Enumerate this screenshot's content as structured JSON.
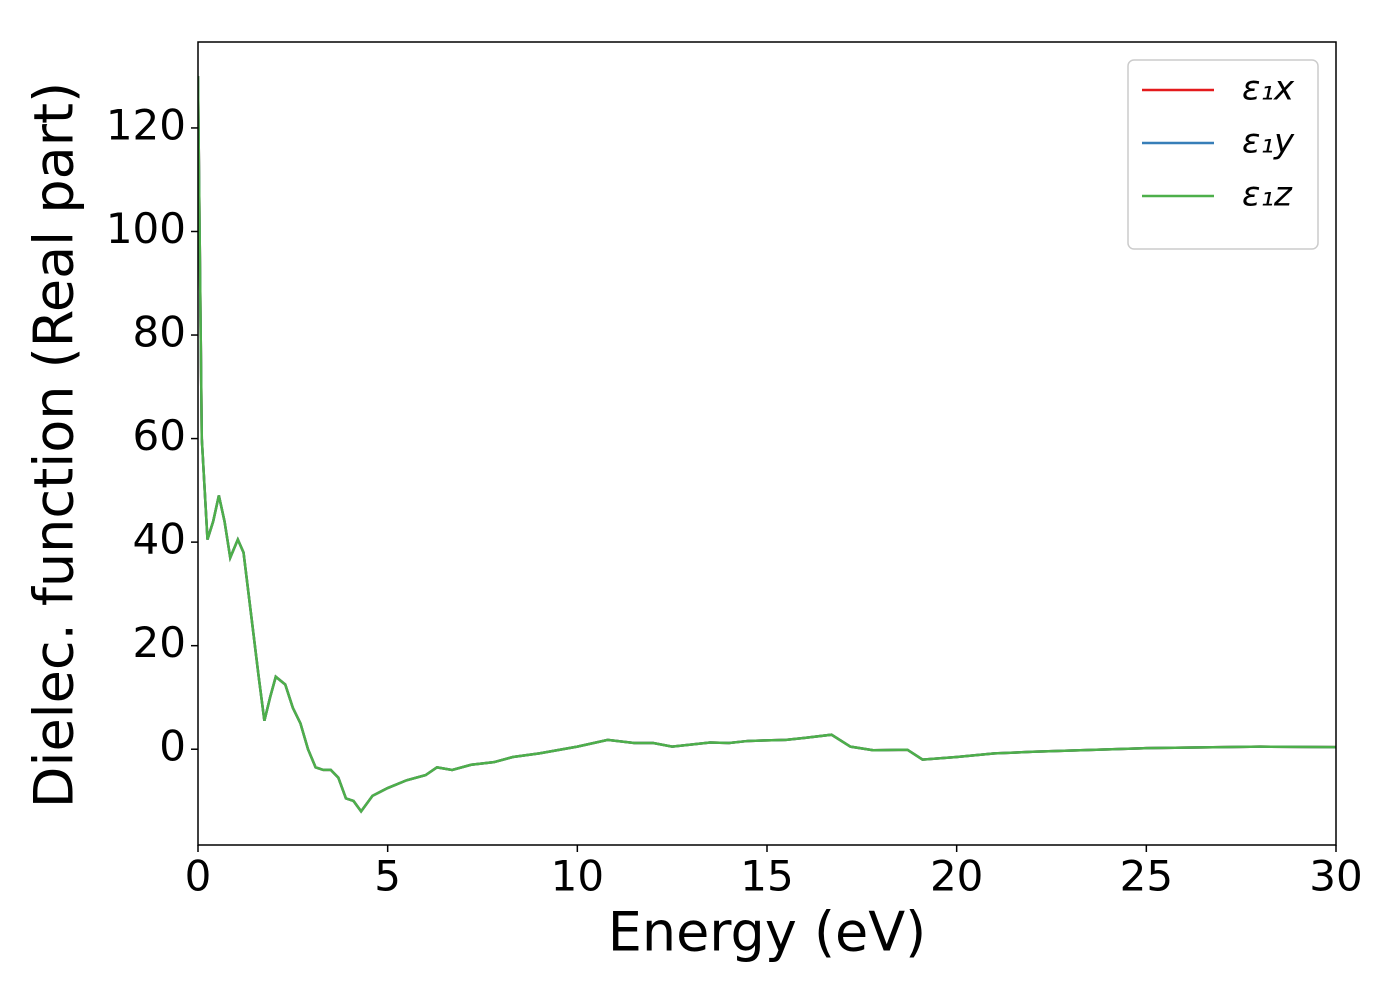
{
  "chart_data": {
    "type": "line",
    "x_label": "Energy (eV)",
    "y_label": "Dielec. function (Real part)",
    "x": [
      0,
      0.1,
      0.25,
      0.4,
      0.55,
      0.7,
      0.85,
      1.05,
      1.2,
      1.4,
      1.6,
      1.75,
      1.9,
      2.05,
      2.3,
      2.5,
      2.7,
      2.9,
      3.1,
      3.3,
      3.5,
      3.7,
      3.9,
      4.1,
      4.3,
      4.6,
      5,
      5.5,
      6,
      6.3,
      6.7,
      7.2,
      7.8,
      8.3,
      9,
      10,
      10.8,
      11.5,
      12,
      12.5,
      13.5,
      14,
      14.5,
      15.5,
      16,
      16.7,
      17.2,
      17.8,
      18.7,
      19.1,
      20,
      21,
      22,
      25,
      28,
      30
    ],
    "series": [
      {
        "name": "ε₁x",
        "color": "#e41a1c",
        "values": [
          130,
          60,
          40.5,
          44,
          49,
          44,
          37,
          40.5,
          38,
          26,
          14,
          5.5,
          10,
          14,
          12.5,
          8,
          5,
          0,
          -3.5,
          -4,
          -4,
          -5.5,
          -9.5,
          -10,
          -12,
          -9,
          -7.5,
          -6,
          -5,
          -3.5,
          -4,
          -3,
          -2.5,
          -1.5,
          -0.8,
          0.5,
          1.8,
          1.2,
          1.2,
          0.5,
          1.3,
          1.2,
          1.6,
          1.8,
          2.2,
          2.8,
          0.5,
          -0.2,
          -0.1,
          -2,
          -1.5,
          -0.8,
          -0.5,
          0.2,
          0.5,
          0.4
        ]
      },
      {
        "name": "ε₁y",
        "color": "#377eb8",
        "values": [
          130,
          60,
          40.5,
          44,
          49,
          44,
          37,
          40.5,
          38,
          26,
          14,
          5.5,
          10,
          14,
          12.5,
          8,
          5,
          0,
          -3.5,
          -4,
          -4,
          -5.5,
          -9.5,
          -10,
          -12,
          -9,
          -7.5,
          -6,
          -5,
          -3.5,
          -4,
          -3,
          -2.5,
          -1.5,
          -0.8,
          0.5,
          1.8,
          1.2,
          1.2,
          0.5,
          1.3,
          1.2,
          1.6,
          1.8,
          2.2,
          2.8,
          0.5,
          -0.2,
          -0.1,
          -2,
          -1.5,
          -0.8,
          -0.5,
          0.2,
          0.5,
          0.4
        ]
      },
      {
        "name": "ε₁z",
        "color": "#4daf4a",
        "values": [
          130,
          60,
          40.5,
          44,
          49,
          44,
          37,
          40.5,
          38,
          26,
          14,
          5.5,
          10,
          14,
          12.5,
          8,
          5,
          0,
          -3.5,
          -4,
          -4,
          -5.5,
          -9.5,
          -10,
          -12,
          -9,
          -7.5,
          -6,
          -5,
          -3.5,
          -4,
          -3,
          -2.5,
          -1.5,
          -0.8,
          0.5,
          1.8,
          1.2,
          1.2,
          0.5,
          1.3,
          1.2,
          1.6,
          1.8,
          2.2,
          2.8,
          0.5,
          -0.2,
          -0.1,
          -2,
          -1.5,
          -0.8,
          -0.5,
          0.2,
          0.5,
          0.4
        ]
      }
    ],
    "xlim": [
      0,
      30
    ],
    "ylim": [
      -18.5,
      136.6
    ],
    "xticks": [
      0,
      5,
      10,
      15,
      20,
      25,
      30
    ],
    "yticks": [
      0,
      20,
      40,
      60,
      80,
      100,
      120
    ],
    "grid": false,
    "legend": "upper-right"
  }
}
